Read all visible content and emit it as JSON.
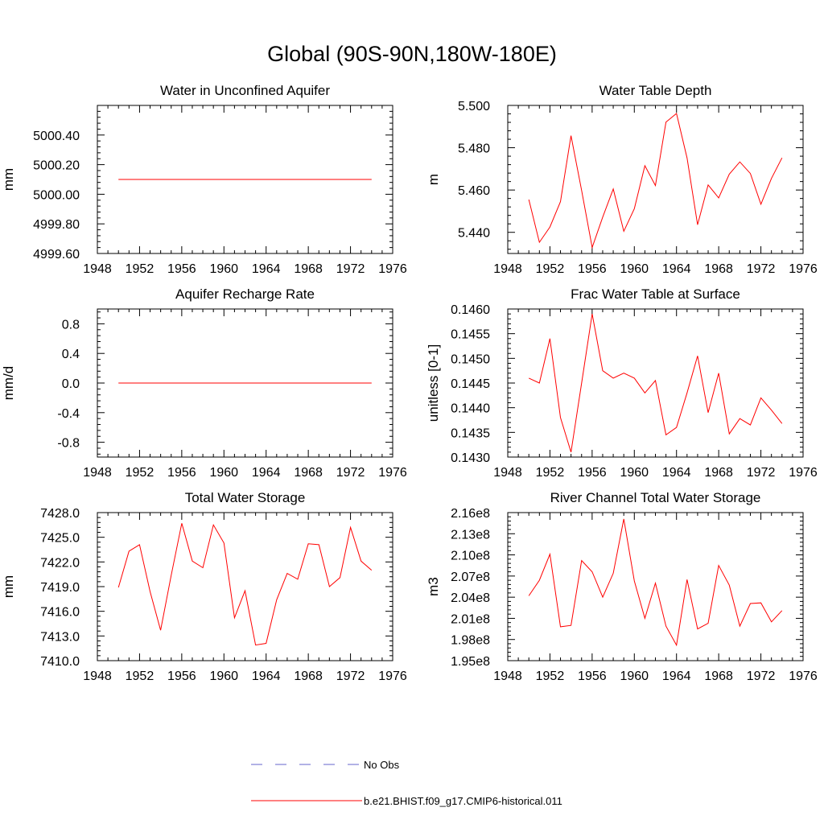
{
  "page": {
    "title": "Global (90S-90N,180W-180E)"
  },
  "legend": [
    {
      "label": "No Obs",
      "color": "#6666cc",
      "dash": true
    },
    {
      "label": "b.e21.BHIST.f09_g17.CMIP6-historical.011",
      "color": "#ff0000",
      "dash": false
    }
  ],
  "chart_data": [
    {
      "type": "line",
      "title": "Water in Unconfined Aquifer",
      "ylabel": "mm",
      "xlim": [
        1948,
        1976
      ],
      "xticks": [
        1948,
        1952,
        1956,
        1960,
        1964,
        1968,
        1972,
        1976
      ],
      "ylim": [
        4999.6,
        5000.6
      ],
      "yticks": [
        4999.6,
        4999.8,
        5000.0,
        5000.2,
        5000.4
      ],
      "ytick_labels": [
        "4999.60",
        "4999.80",
        "5000.00",
        "5000.20",
        "5000.40"
      ],
      "series": [
        {
          "name": "b.e21.BHIST.f09_g17.CMIP6-historical.011",
          "color": "#ff0000",
          "x": [
            1950,
            1951,
            1952,
            1953,
            1954,
            1955,
            1956,
            1957,
            1958,
            1959,
            1960,
            1961,
            1962,
            1963,
            1964,
            1965,
            1966,
            1967,
            1968,
            1969,
            1970,
            1971,
            1972,
            1973,
            1974
          ],
          "y": [
            5000.1,
            5000.1,
            5000.1,
            5000.1,
            5000.1,
            5000.1,
            5000.1,
            5000.1,
            5000.1,
            5000.1,
            5000.1,
            5000.1,
            5000.1,
            5000.1,
            5000.1,
            5000.1,
            5000.1,
            5000.1,
            5000.1,
            5000.1,
            5000.1,
            5000.1,
            5000.1,
            5000.1,
            5000.1
          ]
        }
      ]
    },
    {
      "type": "line",
      "title": "Water Table Depth",
      "ylabel": "m",
      "xlim": [
        1948,
        1976
      ],
      "xticks": [
        1948,
        1952,
        1956,
        1960,
        1964,
        1968,
        1972,
        1976
      ],
      "ylim": [
        5.43,
        5.5
      ],
      "yticks": [
        5.44,
        5.46,
        5.48,
        5.5
      ],
      "ytick_labels": [
        "5.440",
        "5.460",
        "5.480",
        "5.500"
      ],
      "series": [
        {
          "name": "b.e21.BHIST.f09_g17.CMIP6-historical.011",
          "color": "#ff0000",
          "x": [
            1950,
            1951,
            1952,
            1953,
            1954,
            1955,
            1956,
            1957,
            1958,
            1959,
            1960,
            1961,
            1962,
            1963,
            1964,
            1965,
            1966,
            1967,
            1968,
            1969,
            1970,
            1971,
            1972,
            1973,
            1974
          ],
          "y": [
            5.4555,
            5.4353,
            5.4425,
            5.4545,
            5.4857,
            5.4598,
            5.4328,
            5.4472,
            5.4605,
            5.4405,
            5.4512,
            5.4715,
            5.4621,
            5.4921,
            5.4962,
            5.4752,
            5.4436,
            5.4624,
            5.4563,
            5.4675,
            5.4733,
            5.4678,
            5.4533,
            5.4655,
            5.4752
          ]
        }
      ]
    },
    {
      "type": "line",
      "title": "Aquifer Recharge Rate",
      "ylabel": "mm/d",
      "xlim": [
        1948,
        1976
      ],
      "xticks": [
        1948,
        1952,
        1956,
        1960,
        1964,
        1968,
        1972,
        1976
      ],
      "ylim": [
        -1.0,
        1.0
      ],
      "yticks": [
        -0.8,
        -0.4,
        0.0,
        0.4,
        0.8
      ],
      "ytick_labels": [
        "-0.8",
        "-0.4",
        "0.0",
        "0.4",
        "0.8"
      ],
      "series": [
        {
          "name": "b.e21.BHIST.f09_g17.CMIP6-historical.011",
          "color": "#ff0000",
          "x": [
            1950,
            1951,
            1952,
            1953,
            1954,
            1955,
            1956,
            1957,
            1958,
            1959,
            1960,
            1961,
            1962,
            1963,
            1964,
            1965,
            1966,
            1967,
            1968,
            1969,
            1970,
            1971,
            1972,
            1973,
            1974
          ],
          "y": [
            0,
            0,
            0,
            0,
            0,
            0,
            0,
            0,
            0,
            0,
            0,
            0,
            0,
            0,
            0,
            0,
            0,
            0,
            0,
            0,
            0,
            0,
            0,
            0,
            0
          ]
        }
      ]
    },
    {
      "type": "line",
      "title": "Frac Water Table at Surface",
      "ylabel": "unitless [0-1]",
      "xlim": [
        1948,
        1976
      ],
      "xticks": [
        1948,
        1952,
        1956,
        1960,
        1964,
        1968,
        1972,
        1976
      ],
      "ylim": [
        0.143,
        0.146
      ],
      "yticks": [
        0.143,
        0.1435,
        0.144,
        0.1445,
        0.145,
        0.1455,
        0.146
      ],
      "ytick_labels": [
        "0.1430",
        "0.1435",
        "0.1440",
        "0.1445",
        "0.1450",
        "0.1455",
        "0.1460"
      ],
      "series": [
        {
          "name": "b.e21.BHIST.f09_g17.CMIP6-historical.011",
          "color": "#ff0000",
          "x": [
            1950,
            1951,
            1952,
            1953,
            1954,
            1955,
            1956,
            1957,
            1958,
            1959,
            1960,
            1961,
            1962,
            1963,
            1964,
            1965,
            1966,
            1967,
            1968,
            1969,
            1970,
            1971,
            1972,
            1973,
            1974
          ],
          "y": [
            0.1446,
            0.1445,
            0.1454,
            0.1438,
            0.1431,
            0.1445,
            0.1459,
            0.14475,
            0.1446,
            0.1447,
            0.1446,
            0.1443,
            0.14455,
            0.14345,
            0.1436,
            0.1443,
            0.14505,
            0.1439,
            0.1447,
            0.14347,
            0.14378,
            0.14365,
            0.1442,
            0.14395,
            0.14368
          ]
        }
      ]
    },
    {
      "type": "line",
      "title": "Total Water Storage",
      "ylabel": "mm",
      "xlim": [
        1948,
        1976
      ],
      "xticks": [
        1948,
        1952,
        1956,
        1960,
        1964,
        1968,
        1972,
        1976
      ],
      "ylim": [
        7410.0,
        7428.0
      ],
      "yticks": [
        7410,
        7413,
        7416,
        7419,
        7422,
        7425,
        7428
      ],
      "ytick_labels": [
        "7410.0",
        "7413.0",
        "7416.0",
        "7419.0",
        "7422.0",
        "7425.0",
        "7428.0"
      ],
      "series": [
        {
          "name": "b.e21.BHIST.f09_g17.CMIP6-historical.011",
          "color": "#ff0000",
          "x": [
            1950,
            1951,
            1952,
            1953,
            1954,
            1955,
            1956,
            1957,
            1958,
            1959,
            1960,
            1961,
            1962,
            1963,
            1964,
            1965,
            1966,
            1967,
            1968,
            1969,
            1970,
            1971,
            1972,
            1973,
            1974
          ],
          "y": [
            7418.9,
            7423.3,
            7424.1,
            7418.4,
            7413.7,
            7420.4,
            7426.7,
            7422.1,
            7421.3,
            7426.5,
            7424.3,
            7415.2,
            7418.5,
            7411.9,
            7412.1,
            7417.4,
            7420.6,
            7419.9,
            7424.2,
            7424.1,
            7419.0,
            7420.1,
            7426.2,
            7422.1,
            7421.0
          ]
        }
      ]
    },
    {
      "type": "line",
      "title": "River Channel Total Water Storage",
      "ylabel": "m3",
      "xlim": [
        1948,
        1976
      ],
      "xticks": [
        1948,
        1952,
        1956,
        1960,
        1964,
        1968,
        1972,
        1976
      ],
      "ylim": [
        195000000,
        216000000
      ],
      "yticks": [
        195000000,
        198000000,
        201000000,
        204000000,
        207000000,
        210000000,
        213000000,
        216000000
      ],
      "ytick_labels": [
        "1.95e8",
        "1.98e8",
        "2.01e8",
        "2.04e8",
        "2.07e8",
        "2.10e8",
        "2.13e8",
        "2.16e8"
      ],
      "series": [
        {
          "name": "b.e21.BHIST.f09_g17.CMIP6-historical.011",
          "color": "#ff0000",
          "x": [
            1950,
            1951,
            1952,
            1953,
            1954,
            1955,
            1956,
            1957,
            1958,
            1959,
            1960,
            1961,
            1962,
            1963,
            1964,
            1965,
            1966,
            1967,
            1968,
            1969,
            1970,
            1971,
            1972,
            1973,
            1974
          ],
          "y": [
            204200000,
            206400000,
            210100000,
            199800000,
            200000000,
            209200000,
            207600000,
            204000000,
            207400000,
            215100000,
            206300000,
            201000000,
            206000000,
            199900000,
            197200000,
            206500000,
            199500000,
            200300000,
            208500000,
            205700000,
            199900000,
            203100000,
            203200000,
            200500000,
            202100000
          ]
        }
      ]
    }
  ]
}
